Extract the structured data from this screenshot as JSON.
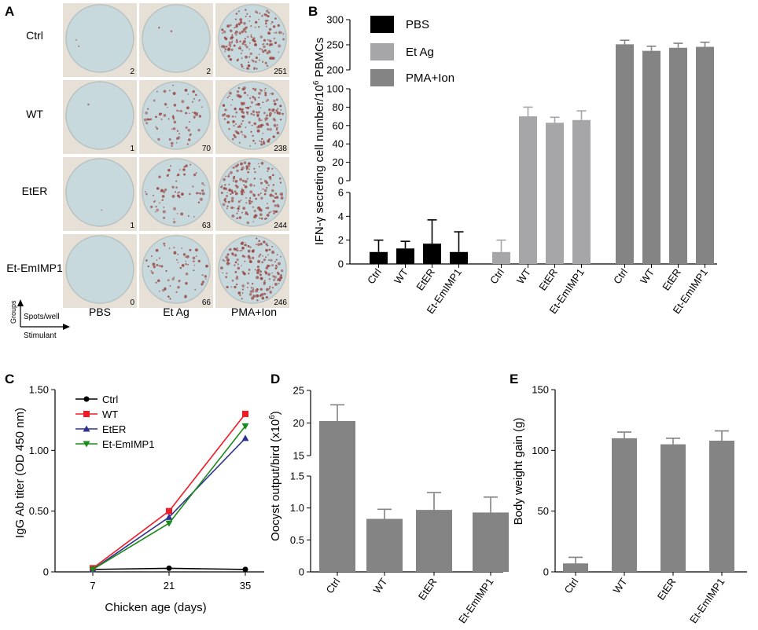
{
  "panels": {
    "a": "A",
    "b": "B",
    "c": "C",
    "d": "D",
    "e": "E"
  },
  "panel_a": {
    "row_labels": [
      "Ctrl",
      "WT",
      "EtER",
      "Et-EmIMP1"
    ],
    "col_labels": [
      "PBS",
      "Et Ag",
      "PMA+Ion"
    ],
    "counts": [
      [
        "2",
        "2",
        "251"
      ],
      [
        "1",
        "70",
        "238"
      ],
      [
        "1",
        "63",
        "244"
      ],
      [
        "0",
        "66",
        "246"
      ]
    ],
    "legend": {
      "y_axis": "Groups",
      "spots": "Spots/well",
      "x_axis": "Stimulant"
    },
    "colors": {
      "plate": "#c7d9dc",
      "rim": "#e6e0d6",
      "spot": "#9a4a48"
    }
  },
  "chart_data": [
    {
      "id": "B",
      "type": "bar",
      "ylabel_parts": [
        "IFN-γ secreting cell number/10",
        "6",
        " PBMCs"
      ],
      "groups": [
        {
          "name": "PBS",
          "color": "#000000",
          "categories": [
            "Ctrl",
            "WT",
            "EtER",
            "Et-EmIMP1"
          ],
          "values": [
            1.0,
            1.3,
            1.7,
            1.0
          ],
          "errors": [
            1.0,
            0.6,
            2.0,
            1.7
          ]
        },
        {
          "name": "Et Ag",
          "color": "#a6a6a8",
          "categories": [
            "Ctrl",
            "WT",
            "EtER",
            "Et-EmIMP1"
          ],
          "values": [
            1.0,
            70,
            63,
            66
          ],
          "errors": [
            1.0,
            10,
            6,
            10
          ]
        },
        {
          "name": "PMA+Ion",
          "color": "#848484",
          "categories": [
            "Ctrl",
            "WT",
            "EtER",
            "Et-EmIMP1"
          ],
          "values": [
            251,
            238,
            244,
            246
          ],
          "errors": [
            8,
            9,
            9,
            9
          ]
        }
      ],
      "axis_segments": [
        {
          "range": [
            0,
            6
          ],
          "ticks": [
            "0",
            "2",
            "4",
            "6"
          ]
        },
        {
          "range": [
            0,
            100
          ],
          "ticks": [
            "0",
            "20",
            "40",
            "60",
            "80",
            "100"
          ]
        },
        {
          "range": [
            200,
            300
          ],
          "ticks": [
            "200",
            "250",
            "300"
          ]
        }
      ],
      "legend": [
        "PBS",
        "Et Ag",
        "PMA+Ion"
      ]
    },
    {
      "id": "C",
      "type": "line",
      "x": [
        7,
        21,
        35
      ],
      "x_ticks": [
        "7",
        "21",
        "35"
      ],
      "xlabel": "Chicken age (days)",
      "ylabel": "IgG Ab titer (OD 450 nm)",
      "ylim": [
        0,
        1.5
      ],
      "y_ticks": [
        "0",
        "0.50",
        "1.00",
        "1.50"
      ],
      "series": [
        {
          "name": "Ctrl",
          "color": "#000000",
          "marker": "circle",
          "values": [
            0.02,
            0.03,
            0.02
          ]
        },
        {
          "name": "WT",
          "color": "#ee1c24",
          "marker": "square",
          "values": [
            0.03,
            0.5,
            1.3
          ]
        },
        {
          "name": "EtER",
          "color": "#2e3192",
          "marker": "triangle",
          "values": [
            0.02,
            0.45,
            1.1
          ]
        },
        {
          "name": "Et-EmIMP1",
          "color": "#1a8a1a",
          "marker": "triangle-down",
          "values": [
            0.02,
            0.4,
            1.2
          ]
        }
      ]
    },
    {
      "id": "D",
      "type": "bar",
      "categories": [
        "Ctrl",
        "WT",
        "EtER",
        "Et-EmIMP1"
      ],
      "values": [
        20.3,
        0.83,
        0.97,
        0.93
      ],
      "errors": [
        2.5,
        0.15,
        0.27,
        0.24
      ],
      "ylabel_parts": [
        "Oocyst output/bird (x10",
        "6",
        ")"
      ],
      "color": "#848484",
      "axis_segments": [
        {
          "range": [
            0,
            1.5
          ],
          "ticks": [
            "0",
            "0.5",
            "1.0",
            "1.5"
          ]
        },
        {
          "range": [
            15,
            25
          ],
          "ticks": [
            "15",
            "20",
            "25"
          ]
        }
      ]
    },
    {
      "id": "E",
      "type": "bar",
      "categories": [
        "Ctrl",
        "WT",
        "EtER",
        "Et-EmIMP1"
      ],
      "values": [
        7,
        110,
        105,
        108
      ],
      "errors": [
        5,
        5,
        5,
        8
      ],
      "ylabel": "Body weight gain (g)",
      "ylim": [
        0,
        150
      ],
      "y_ticks": [
        "0",
        "50",
        "100",
        "150"
      ],
      "color": "#848484"
    }
  ]
}
